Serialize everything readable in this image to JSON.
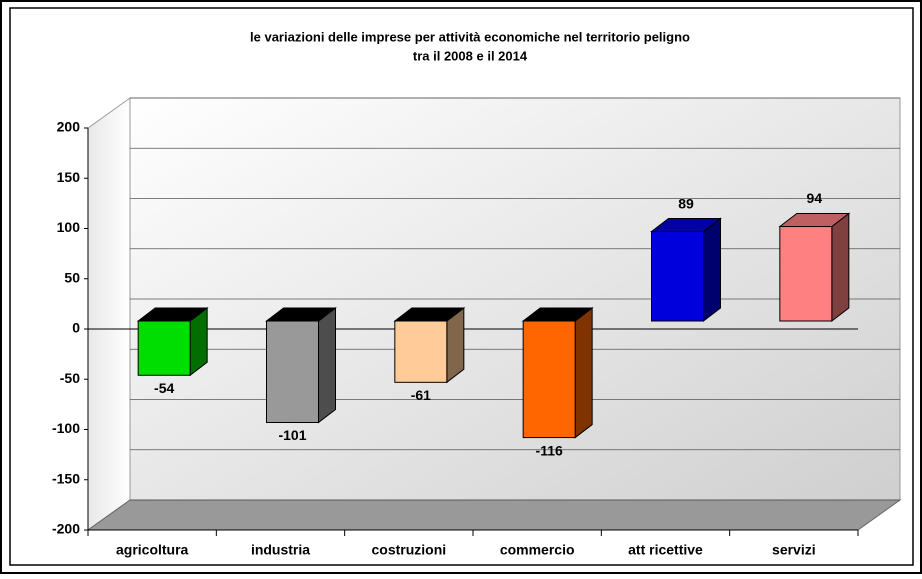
{
  "chart_data": {
    "type": "bar3d",
    "title": "le variazioni delle imprese per attività economiche nel territorio peligno",
    "subtitle": "tra il 2008 e il 2014",
    "categories": [
      "agricoltura",
      "industria",
      "costruzioni",
      "commercio",
      "att ricettive",
      "servizi"
    ],
    "values": [
      -54,
      -101,
      -61,
      -116,
      89,
      94
    ],
    "colors": [
      "#00dd00",
      "#999999",
      "#ffcc99",
      "#ff6600",
      "#0000dd",
      "#ff8080"
    ],
    "ylim": [
      -200,
      200
    ],
    "yticks": [
      -200,
      -150,
      -100,
      -50,
      0,
      50,
      100,
      150,
      200
    ],
    "grid": true
  }
}
